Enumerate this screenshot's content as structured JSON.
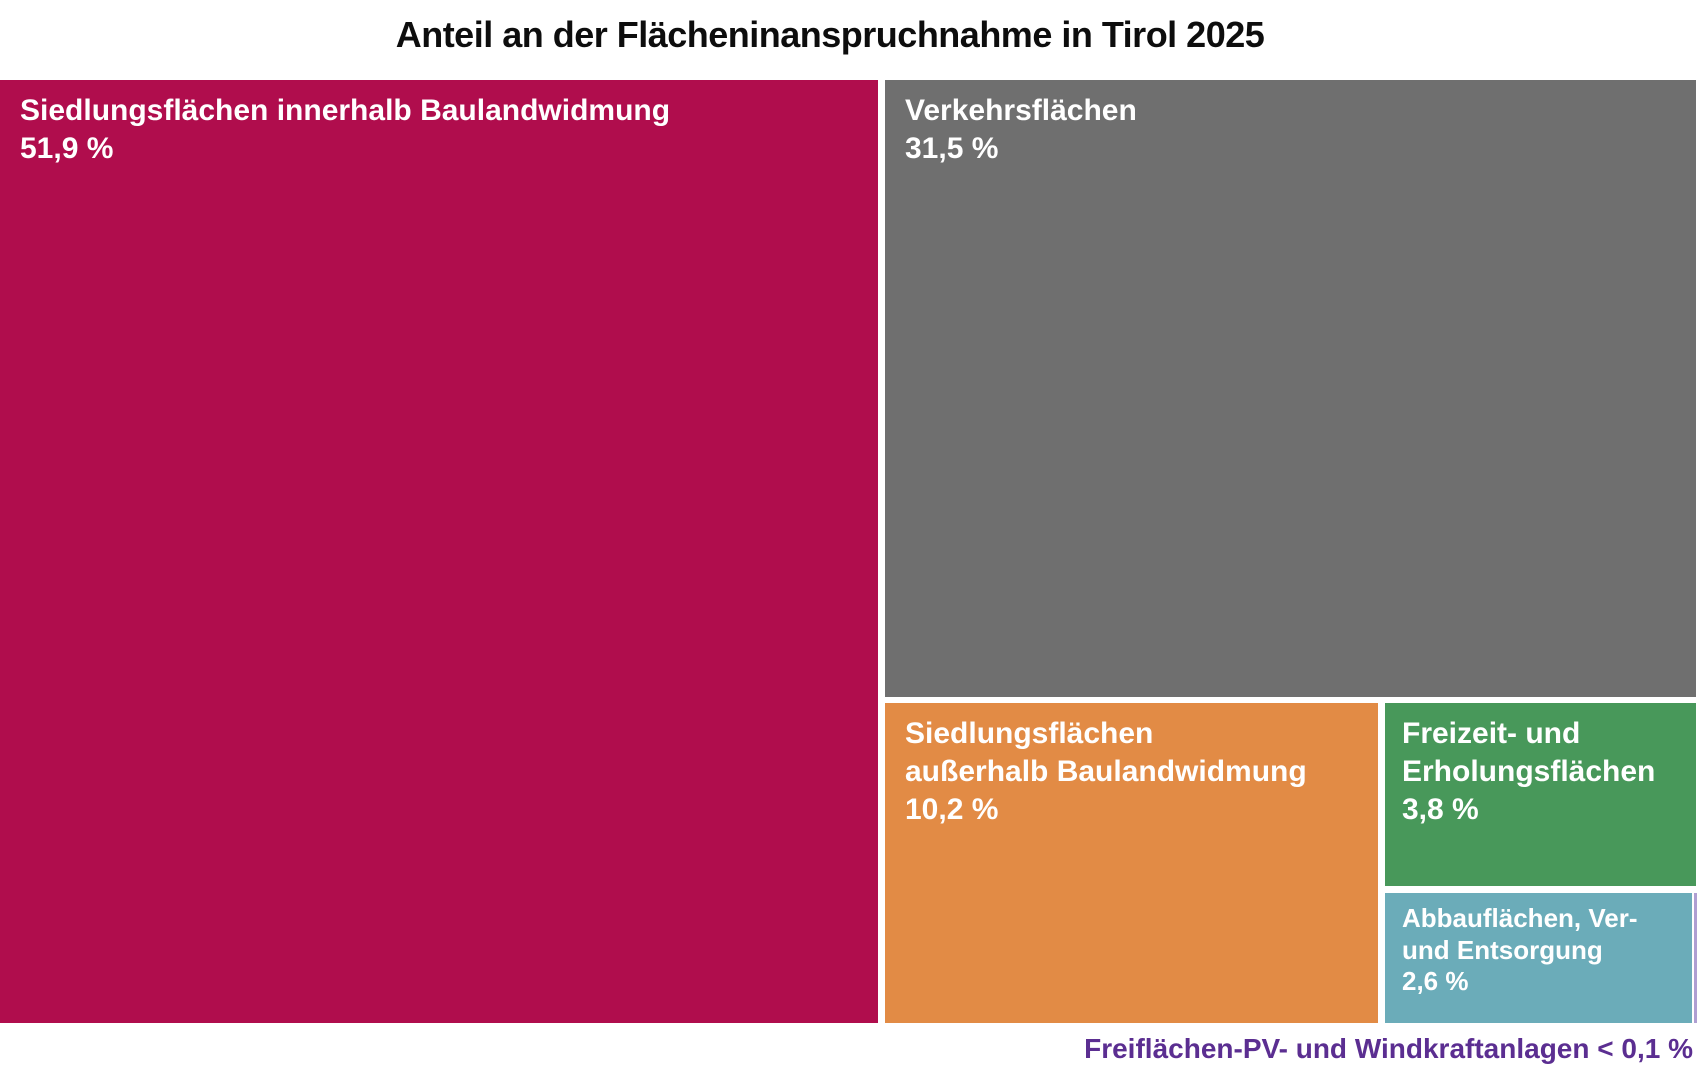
{
  "title": "Anteil an der Flächeninanspruchnahme in Tirol 2025",
  "chart_data": {
    "type": "treemap",
    "title": "Anteil an der Flächeninanspruchnahme in Tirol 2025",
    "unit": "%",
    "items": [
      {
        "name": "Siedlungsflächen innerhalb Baulandwidmung",
        "value": 51.9,
        "display_value": "51,9 %",
        "label_lines": [
          "Siedlungsflächen innerhalb Baulandwidmung"
        ],
        "color": "#B00D4D"
      },
      {
        "name": "Verkehrsflächen",
        "value": 31.5,
        "display_value": "31,5 %",
        "label_lines": [
          "Verkehrsflächen"
        ],
        "color": "#6F6F6F"
      },
      {
        "name": "Siedlungsflächen außerhalb Baulandwidmung",
        "value": 10.2,
        "display_value": "10,2 %",
        "label_lines": [
          "Siedlungsflächen",
          "außerhalb Baulandwidmung"
        ],
        "color": "#E28B45"
      },
      {
        "name": "Freizeit- und Erholungsflächen",
        "value": 3.8,
        "display_value": "3,8 %",
        "label_lines": [
          "Freizeit- und",
          "Erholungsflächen"
        ],
        "color": "#48985A"
      },
      {
        "name": "Abbauflächen, Ver- und Entsorgung",
        "value": 2.6,
        "display_value": "2,6 %",
        "label_lines": [
          "Abbauflächen, Ver-",
          "und Entsorgung"
        ],
        "color": "#6BACB9"
      },
      {
        "name": "Freiflächen-PV- und Windkraftanlagen",
        "value": 0.1,
        "display_value": "< 0,1 %",
        "label_lines": [],
        "color": "#AF9FD2"
      }
    ],
    "footnote": "Freiflächen-PV- und Windkraftanlagen < 0,1 %",
    "footnote_color": "#5B2E91",
    "legend_position": "none",
    "background": "#ffffff"
  }
}
